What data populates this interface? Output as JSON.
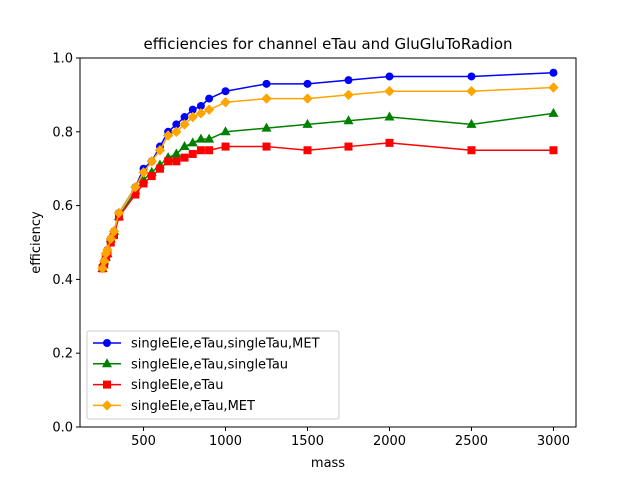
{
  "chart_data": {
    "type": "line",
    "title": "efficiencies for channel eTau and GluGluToRadion",
    "xlabel": "mass",
    "ylabel": "efficiency",
    "xlim": [
      112.5,
      3137.5
    ],
    "ylim": [
      0.0,
      1.0
    ],
    "xticks": [
      500,
      1000,
      1500,
      2000,
      2500,
      3000
    ],
    "yticks": [
      0.0,
      0.2,
      0.4,
      0.6,
      0.8,
      1.0
    ],
    "xtick_labels": [
      "500",
      "1000",
      "1500",
      "2000",
      "2500",
      "3000"
    ],
    "ytick_labels": [
      "0.0",
      "0.2",
      "0.4",
      "0.6",
      "0.8",
      "1.0"
    ],
    "grid": false,
    "legend_position": "lower-left",
    "x": [
      250,
      260,
      270,
      280,
      300,
      320,
      350,
      450,
      500,
      550,
      600,
      650,
      700,
      750,
      800,
      850,
      900,
      1000,
      1250,
      1500,
      1750,
      2000,
      2500,
      3000
    ],
    "series": [
      {
        "name": "singleEle,eTau,singleTau,MET",
        "color": "#0000ff",
        "marker": "circle",
        "values": [
          0.43,
          0.45,
          0.46,
          0.48,
          0.51,
          0.53,
          0.58,
          0.65,
          0.7,
          0.72,
          0.76,
          0.8,
          0.82,
          0.84,
          0.86,
          0.87,
          0.89,
          0.91,
          0.93,
          0.93,
          0.94,
          0.95,
          0.95,
          0.96
        ]
      },
      {
        "name": "singleEle,eTau,singleTau",
        "color": "#008000",
        "marker": "triangle",
        "values": [
          0.43,
          0.45,
          0.46,
          0.47,
          0.51,
          0.53,
          0.57,
          0.64,
          0.67,
          0.69,
          0.71,
          0.73,
          0.74,
          0.76,
          0.77,
          0.78,
          0.78,
          0.8,
          0.81,
          0.82,
          0.83,
          0.84,
          0.82,
          0.85
        ]
      },
      {
        "name": "singleEle,eTau",
        "color": "#ff0000",
        "marker": "square",
        "values": [
          0.43,
          0.44,
          0.46,
          0.47,
          0.5,
          0.52,
          0.57,
          0.63,
          0.66,
          0.68,
          0.7,
          0.72,
          0.72,
          0.73,
          0.74,
          0.75,
          0.75,
          0.76,
          0.76,
          0.75,
          0.76,
          0.77,
          0.75,
          0.75
        ]
      },
      {
        "name": "singleEle,eTau,MET",
        "color": "#ffa500",
        "marker": "diamond",
        "values": [
          0.43,
          0.45,
          0.47,
          0.48,
          0.51,
          0.53,
          0.58,
          0.65,
          0.69,
          0.72,
          0.75,
          0.79,
          0.8,
          0.82,
          0.84,
          0.85,
          0.86,
          0.88,
          0.89,
          0.89,
          0.9,
          0.91,
          0.91,
          0.92
        ]
      }
    ]
  }
}
